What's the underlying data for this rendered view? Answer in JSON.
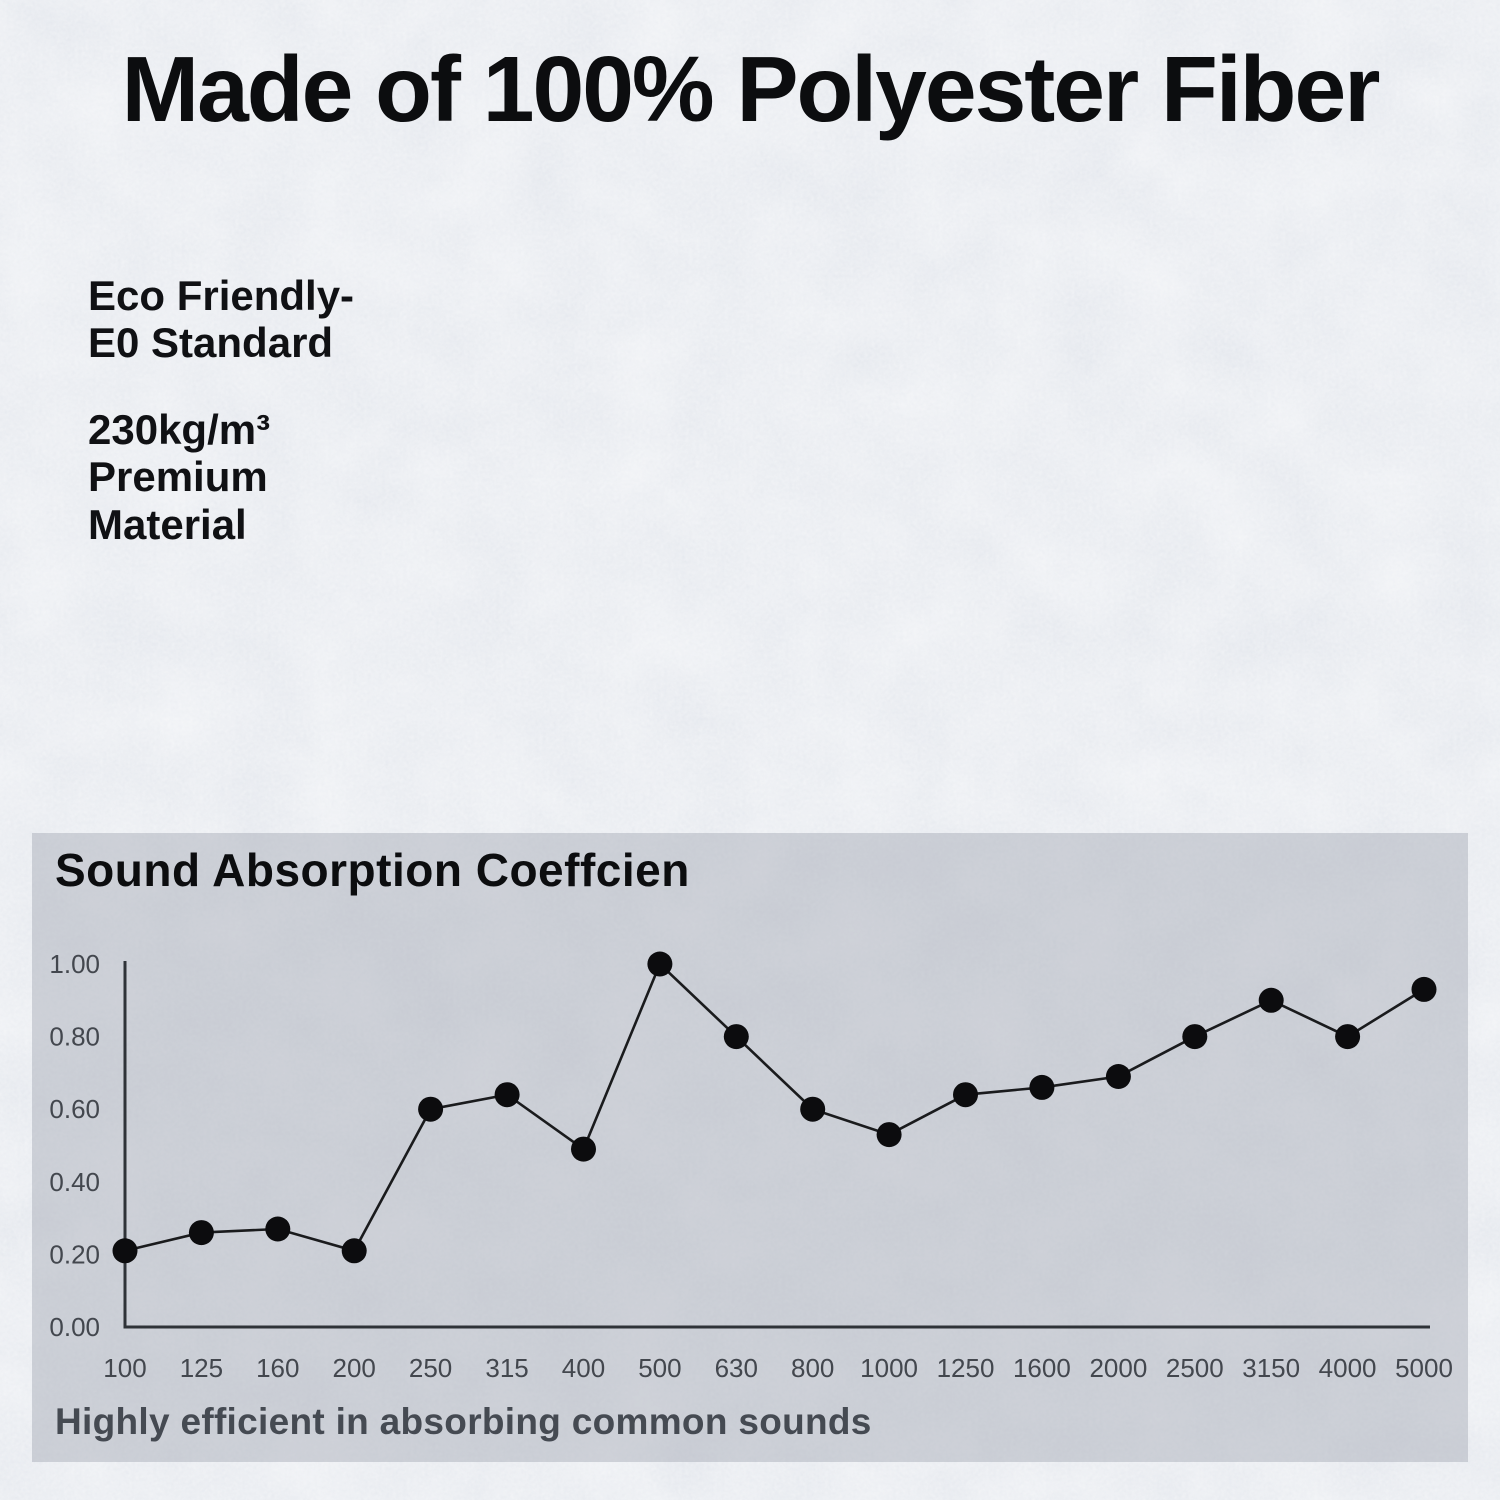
{
  "header": {
    "title": "Made of 100% Polyester Fiber"
  },
  "features": {
    "eco": [
      "Eco Friendly-",
      "E0 Standard"
    ],
    "material": [
      "230kg/m³",
      "Premium",
      "Material"
    ]
  },
  "panel": {
    "title": "Sound Absorption Coeffcien",
    "caption": "Highly efficient in absorbing common sounds"
  },
  "chart_data": {
    "type": "line",
    "title": "Sound Absorption Coeffcien",
    "categories": [
      "100",
      "125",
      "160",
      "200",
      "250",
      "315",
      "400",
      "500",
      "630",
      "800",
      "1000",
      "1250",
      "1600",
      "2000",
      "2500",
      "3150",
      "4000",
      "5000"
    ],
    "values": [
      0.21,
      0.26,
      0.27,
      0.21,
      0.6,
      0.64,
      0.49,
      1.0,
      0.8,
      0.6,
      0.53,
      0.64,
      0.66,
      0.69,
      0.8,
      0.9,
      0.8,
      0.93
    ],
    "xlabel": "",
    "ylabel": "",
    "ylim": [
      0,
      1
    ],
    "y_ticks": [
      0,
      0.2,
      0.4,
      0.6,
      0.8,
      1.0
    ],
    "y_tick_labels": [
      "0.00",
      "0.20",
      "0.40",
      "0.60",
      "0.80",
      "1.00"
    ],
    "grid": false,
    "legend": false,
    "marker": "filled-circle"
  },
  "colors": {
    "page_background": "#dfe3ea",
    "panel_background": "rgba(158,163,173,0.42)",
    "heading_text": "#0c0d0f",
    "body_text": "#101114",
    "caption_text": "#454a52",
    "axis": "#2f3338",
    "tick_text": "#43474e",
    "line": "#1a1b1d",
    "marker": "#0c0c0e"
  }
}
